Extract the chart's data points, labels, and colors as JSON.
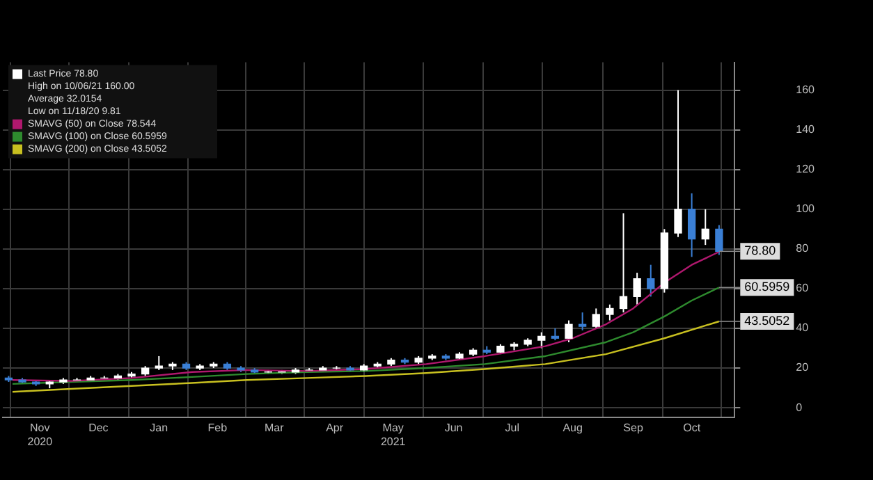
{
  "chart_data": {
    "type": "candlestick",
    "series": [
      {
        "name": "Last Price 78.80",
        "color": "#ffffff",
        "x": [
          "2020-10-30",
          "2020-11-06",
          "2020-11-13",
          "2020-11-20",
          "2020-11-27",
          "2020-12-04",
          "2020-12-11",
          "2020-12-18",
          "2020-12-25",
          "2021-01-01",
          "2021-01-08",
          "2021-01-15",
          "2021-01-22",
          "2021-01-29",
          "2021-02-05",
          "2021-02-12",
          "2021-02-19",
          "2021-02-26",
          "2021-03-05",
          "2021-03-12",
          "2021-03-19",
          "2021-03-26",
          "2021-04-02",
          "2021-04-09",
          "2021-04-16",
          "2021-04-23",
          "2021-04-30",
          "2021-05-07",
          "2021-05-14",
          "2021-05-21",
          "2021-05-28",
          "2021-06-04",
          "2021-06-11",
          "2021-06-18",
          "2021-06-25",
          "2021-07-02",
          "2021-07-09",
          "2021-07-16",
          "2021-07-23",
          "2021-07-30",
          "2021-08-06",
          "2021-08-13",
          "2021-08-20",
          "2021-08-27",
          "2021-09-03",
          "2021-09-10",
          "2021-09-17",
          "2021-09-24",
          "2021-10-01",
          "2021-10-08",
          "2021-10-15",
          "2021-10-22",
          "2021-10-29"
        ],
        "ohlc": [
          [
            15,
            16,
            13,
            14
          ],
          [
            14,
            15,
            12,
            13
          ],
          [
            13,
            14,
            11,
            12
          ],
          [
            12,
            14,
            9.81,
            13
          ],
          [
            13,
            15,
            12,
            14
          ],
          [
            14,
            15,
            13,
            14
          ],
          [
            14,
            16,
            13,
            15
          ],
          [
            15,
            16,
            14,
            15
          ],
          [
            15,
            17,
            14,
            16
          ],
          [
            16,
            18,
            15,
            17
          ],
          [
            17,
            21,
            16,
            20
          ],
          [
            20,
            26,
            19,
            21
          ],
          [
            21,
            23,
            19,
            22
          ],
          [
            22,
            23,
            19,
            20
          ],
          [
            20,
            22,
            19,
            21
          ],
          [
            21,
            23,
            20,
            22
          ],
          [
            22,
            23,
            19,
            20
          ],
          [
            20,
            21,
            18,
            19
          ],
          [
            19,
            20,
            17,
            18
          ],
          [
            18,
            19,
            17,
            18
          ],
          [
            18,
            19,
            17,
            18
          ],
          [
            18,
            20,
            17,
            19
          ],
          [
            19,
            20,
            18,
            19
          ],
          [
            19,
            21,
            18,
            20
          ],
          [
            20,
            21,
            19,
            20
          ],
          [
            20,
            21,
            18,
            19
          ],
          [
            19,
            22,
            18,
            21
          ],
          [
            21,
            23,
            20,
            22
          ],
          [
            22,
            25,
            21,
            24
          ],
          [
            24,
            25,
            22,
            23
          ],
          [
            23,
            26,
            22,
            25
          ],
          [
            25,
            27,
            24,
            26
          ],
          [
            26,
            27,
            24,
            25
          ],
          [
            25,
            28,
            24,
            27
          ],
          [
            27,
            30,
            26,
            29
          ],
          [
            29,
            31,
            27,
            28
          ],
          [
            28,
            32,
            27,
            31
          ],
          [
            31,
            33,
            29,
            32
          ],
          [
            32,
            35,
            31,
            34
          ],
          [
            34,
            38,
            30,
            36
          ],
          [
            36,
            40,
            34,
            35
          ],
          [
            35,
            44,
            33,
            42
          ],
          [
            42,
            48,
            39,
            41
          ],
          [
            41,
            50,
            40,
            47
          ],
          [
            47,
            52,
            44,
            50
          ],
          [
            50,
            98,
            48,
            56
          ],
          [
            56,
            68,
            52,
            65
          ],
          [
            65,
            72,
            56,
            60
          ],
          [
            60,
            90,
            58,
            88
          ],
          [
            88,
            160,
            86,
            100
          ],
          [
            100,
            108,
            76,
            85
          ],
          [
            85,
            100,
            82,
            90
          ],
          [
            90,
            92,
            77,
            78.8
          ]
        ],
        "colors": [
          "#3a7fd5",
          "#3a7fd5",
          "#3a7fd5",
          "#ffffff",
          "#ffffff",
          "#ffffff",
          "#ffffff",
          "#ffffff",
          "#ffffff",
          "#ffffff",
          "#ffffff",
          "#ffffff",
          "#ffffff",
          "#3a7fd5",
          "#ffffff",
          "#ffffff",
          "#3a7fd5",
          "#3a7fd5",
          "#3a7fd5",
          "#ffffff",
          "#ffffff",
          "#ffffff",
          "#ffffff",
          "#ffffff",
          "#ffffff",
          "#3a7fd5",
          "#ffffff",
          "#ffffff",
          "#ffffff",
          "#3a7fd5",
          "#ffffff",
          "#ffffff",
          "#3a7fd5",
          "#ffffff",
          "#ffffff",
          "#3a7fd5",
          "#ffffff",
          "#ffffff",
          "#ffffff",
          "#ffffff",
          "#3a7fd5",
          "#ffffff",
          "#3a7fd5",
          "#ffffff",
          "#ffffff",
          "#ffffff",
          "#ffffff",
          "#3a7fd5",
          "#ffffff",
          "#ffffff",
          "#3a7fd5",
          "#ffffff",
          "#3a7fd5"
        ]
      },
      {
        "name": "SMAVG (50) on Close 78.544",
        "type": "line",
        "color": "#b0186e",
        "x": [
          "2020-11-01",
          "2020-12-01",
          "2021-01-01",
          "2021-02-01",
          "2021-03-01",
          "2021-04-01",
          "2021-05-01",
          "2021-06-01",
          "2021-07-01",
          "2021-08-01",
          "2021-08-15",
          "2021-09-01",
          "2021-09-15",
          "2021-10-01",
          "2021-10-15",
          "2021-10-29"
        ],
        "values": [
          14,
          13.5,
          15,
          18,
          19,
          18.5,
          19.5,
          22,
          26,
          31,
          35,
          42,
          50,
          63,
          72,
          78.544
        ]
      },
      {
        "name": "SMAVG (100) on Close 60.5959",
        "type": "line",
        "color": "#2e8b2e",
        "x": [
          "2020-11-01",
          "2020-12-01",
          "2021-01-01",
          "2021-02-01",
          "2021-03-01",
          "2021-04-01",
          "2021-05-01",
          "2021-06-01",
          "2021-07-01",
          "2021-08-01",
          "2021-09-01",
          "2021-09-15",
          "2021-10-01",
          "2021-10-15",
          "2021-10-29"
        ],
        "values": [
          12,
          13,
          14,
          15.5,
          17,
          18,
          18.5,
          20,
          22,
          26,
          33,
          38,
          46,
          54,
          60.5959
        ]
      },
      {
        "name": "SMAVG (200) on Close 43.5052",
        "type": "line",
        "color": "#c8c020",
        "x": [
          "2020-11-01",
          "2020-12-01",
          "2021-01-01",
          "2021-02-01",
          "2021-03-01",
          "2021-04-01",
          "2021-05-01",
          "2021-06-01",
          "2021-07-01",
          "2021-08-01",
          "2021-09-01",
          "2021-10-01",
          "2021-10-29"
        ],
        "values": [
          8,
          9.5,
          11,
          12.5,
          14,
          15,
          16,
          17.5,
          19.5,
          22,
          27,
          35,
          43.5052
        ]
      }
    ],
    "annotations": [
      "High on 10/06/21 160.00",
      "Average 32.0154",
      "Low on 11/18/20 9.81",
      {
        "text": "78.80",
        "x": "2021-10-29",
        "y": 78.8
      },
      {
        "text": "60.5959",
        "x": "2021-10-29",
        "y": 60.5959
      },
      {
        "text": "43.5052",
        "x": "2021-10-29",
        "y": 43.5052
      }
    ],
    "xlim": [
      "2020-10-27",
      "2021-11-06"
    ],
    "xticks": [
      {
        "value": "2020-11-15",
        "label": "Nov\n2020"
      },
      {
        "value": "2020-12-15",
        "label": "Dec"
      },
      {
        "value": "2021-01-15",
        "label": "Jan"
      },
      {
        "value": "2021-02-14",
        "label": "Feb"
      },
      {
        "value": "2021-03-15",
        "label": "Mar"
      },
      {
        "value": "2021-04-15",
        "label": "Apr"
      },
      {
        "value": "2021-05-15",
        "label": "May\n2021"
      },
      {
        "value": "2021-06-15",
        "label": "Jun"
      },
      {
        "value": "2021-07-15",
        "label": "Jul"
      },
      {
        "value": "2021-08-15",
        "label": "Aug"
      },
      {
        "value": "2021-09-15",
        "label": "Sep"
      },
      {
        "value": "2021-10-15",
        "label": "Oct"
      }
    ],
    "ylim": [
      -5,
      174
    ],
    "yticks": [
      0,
      20,
      40,
      60,
      80,
      100,
      120,
      140,
      160
    ],
    "grid": true,
    "legend": "top left"
  }
}
